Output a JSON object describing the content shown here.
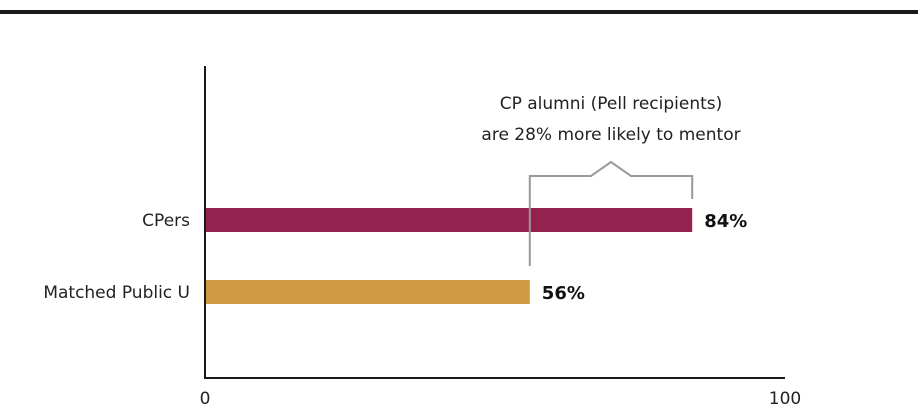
{
  "chart_data": {
    "type": "bar",
    "orientation": "horizontal",
    "categories": [
      "CPers",
      "Matched Public U"
    ],
    "values": [
      84,
      56
    ],
    "value_labels": [
      "84%",
      "56%"
    ],
    "colors": [
      "#94224f",
      "#d09a42"
    ],
    "xlim": [
      0,
      100
    ],
    "x_tick_labels": [
      "0",
      "100"
    ],
    "grid": false,
    "annotation": {
      "lines": [
        "CP alumni (Pell recipients)",
        "are 28% more likely to mentor"
      ],
      "from_value": 56,
      "to_value": 84
    }
  }
}
